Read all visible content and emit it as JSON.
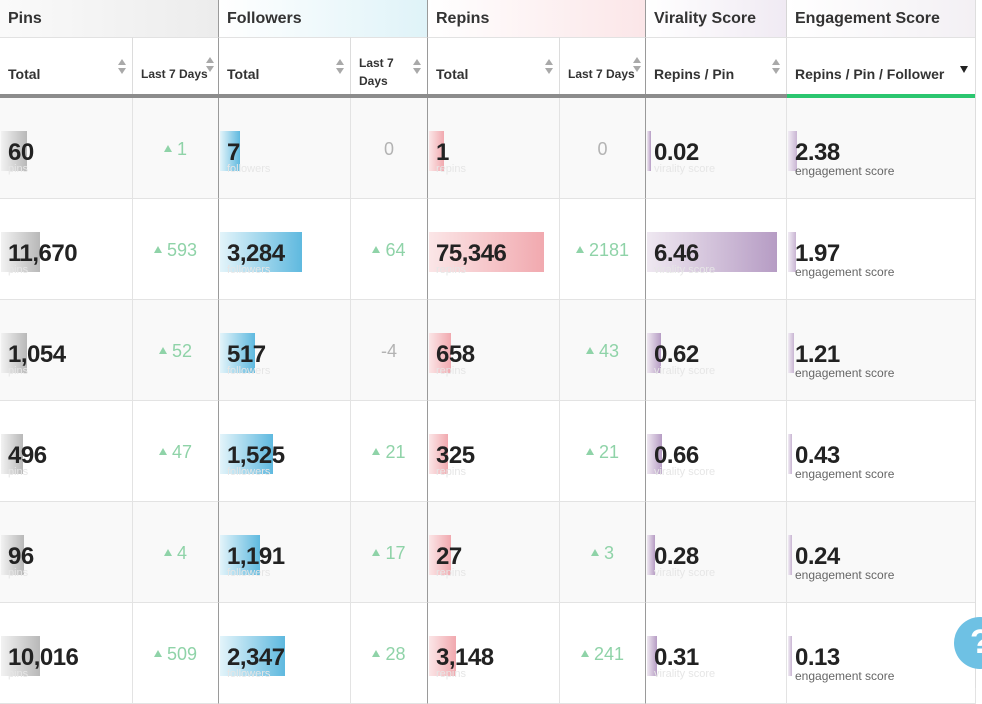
{
  "groups": {
    "pins": "Pins",
    "followers": "Followers",
    "repins": "Repins",
    "virality": "Virality Score",
    "engagement": "Engagement Score"
  },
  "subheaders": {
    "pins_total": "Total",
    "pins_last7": "Last 7 Days",
    "followers_total": "Total",
    "followers_last7_line1": "Last 7",
    "followers_last7_line2": "Days",
    "repins_total": "Total",
    "repins_last7": "Last 7 Days",
    "virality": "Repins / Pin",
    "engagement": "Repins / Pin / Follower"
  },
  "ghost_labels": {
    "pins": "pins",
    "followers": "followers",
    "repins": "repins",
    "virality": "virality score",
    "engagement": "engagement score"
  },
  "rows": [
    {
      "pins": "60",
      "pins_bar": 0.2,
      "pins_delta": "1",
      "pins_up": true,
      "followers": "7",
      "followers_bar": 0.15,
      "followers_delta": "0",
      "followers_up": false,
      "repins": "1",
      "repins_bar": 0.12,
      "repins_delta": "0",
      "repins_up": false,
      "virality": "0.02",
      "virality_bar": 0.02,
      "engagement": "2.38",
      "engagement_bar": 0.05
    },
    {
      "pins": "11,670",
      "pins_bar": 0.3,
      "pins_delta": "593",
      "pins_up": true,
      "followers": "3,284",
      "followers_bar": 0.63,
      "followers_delta": "64",
      "followers_up": true,
      "repins": "75,346",
      "repins_bar": 0.93,
      "repins_delta": "2181",
      "repins_up": true,
      "virality": "6.46",
      "virality_bar": 0.93,
      "engagement": "1.97",
      "engagement_bar": 0.04
    },
    {
      "pins": "1,054",
      "pins_bar": 0.2,
      "pins_delta": "52",
      "pins_up": true,
      "followers": "517",
      "followers_bar": 0.27,
      "followers_delta": "-4",
      "followers_up": false,
      "repins": "658",
      "repins_bar": 0.18,
      "repins_delta": "43",
      "repins_up": true,
      "virality": "0.62",
      "virality_bar": 0.1,
      "engagement": "1.21",
      "engagement_bar": 0.03
    },
    {
      "pins": "496",
      "pins_bar": 0.17,
      "pins_delta": "47",
      "pins_up": true,
      "followers": "1,525",
      "followers_bar": 0.41,
      "followers_delta": "21",
      "followers_up": true,
      "repins": "325",
      "repins_bar": 0.15,
      "repins_delta": "21",
      "repins_up": true,
      "virality": "0.66",
      "virality_bar": 0.11,
      "engagement": "0.43",
      "engagement_bar": 0.02
    },
    {
      "pins": "96",
      "pins_bar": 0.18,
      "pins_delta": "4",
      "pins_up": true,
      "followers": "1,191",
      "followers_bar": 0.31,
      "followers_delta": "17",
      "followers_up": true,
      "repins": "27",
      "repins_bar": 0.18,
      "repins_delta": "3",
      "repins_up": true,
      "virality": "0.28",
      "virality_bar": 0.06,
      "engagement": "0.24",
      "engagement_bar": 0.02
    },
    {
      "pins": "10,016",
      "pins_bar": 0.3,
      "pins_delta": "509",
      "pins_up": true,
      "followers": "2,347",
      "followers_bar": 0.5,
      "followers_delta": "28",
      "followers_up": true,
      "repins": "3,148",
      "repins_bar": 0.22,
      "repins_delta": "241",
      "repins_up": true,
      "virality": "0.31",
      "virality_bar": 0.07,
      "engagement": "0.13",
      "engagement_bar": 0.02
    }
  ],
  "help_label": "?",
  "colors": {
    "accent_green": "#2bc66f",
    "delta_green": "#8fd3a8",
    "pins_bar": "#b8b8b8",
    "followers_bar": "#5fb9df",
    "repins_bar": "#f1a9af",
    "virality_bar": "#b69cc4",
    "help": "#6ec1e4"
  }
}
